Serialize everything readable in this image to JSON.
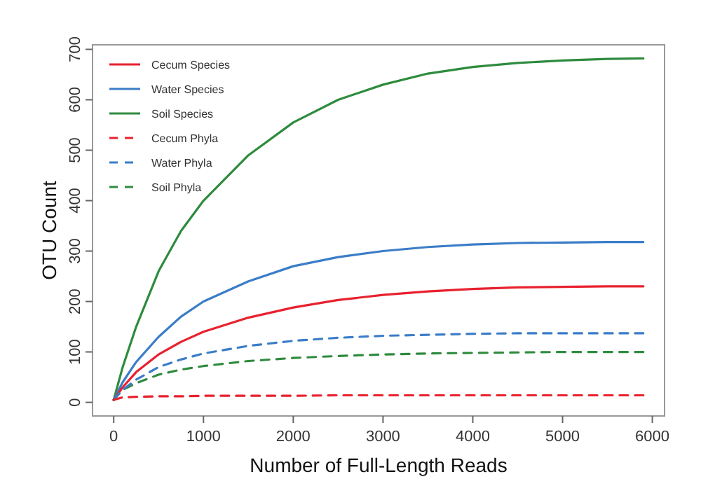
{
  "chart_data": {
    "type": "line",
    "xlabel": "Number of Full-Length Reads",
    "ylabel": "OTU Count",
    "x": [
      0,
      100,
      250,
      500,
      750,
      1000,
      1500,
      2000,
      2500,
      3000,
      3500,
      4000,
      4500,
      5000,
      5500,
      5900
    ],
    "xlim": [
      -236,
      6136
    ],
    "ylim": [
      -27,
      709
    ],
    "xticks": [
      0,
      1000,
      2000,
      3000,
      4000,
      5000,
      6000
    ],
    "yticks": [
      0,
      100,
      200,
      300,
      400,
      500,
      600,
      700
    ],
    "grid": false,
    "legend": "top left",
    "series": [
      {
        "name": "Cecum Species",
        "color": "#e8212e",
        "line_style": "solid",
        "values": [
          5,
          30,
          60,
          95,
          120,
          140,
          168,
          188,
          203,
          213,
          220,
          225,
          228,
          229,
          230,
          230
        ]
      },
      {
        "name": "Water Species",
        "color": "#3b7dc8",
        "line_style": "solid",
        "values": [
          5,
          40,
          80,
          130,
          170,
          200,
          240,
          270,
          288,
          300,
          308,
          313,
          316,
          317,
          318,
          318
        ]
      },
      {
        "name": "Soil Species",
        "color": "#2e8b3e",
        "line_style": "solid",
        "values": [
          5,
          70,
          150,
          260,
          340,
          400,
          490,
          555,
          600,
          630,
          652,
          665,
          673,
          678,
          681,
          682
        ]
      },
      {
        "name": "Cecum Phyla",
        "color": "#e8212e",
        "line_style": "dashed",
        "values": [
          5,
          10,
          11,
          12,
          12,
          13,
          13,
          13,
          14,
          14,
          14,
          14,
          14,
          14,
          14,
          14
        ]
      },
      {
        "name": "Water Phyla",
        "color": "#3b7dc8",
        "line_style": "dashed",
        "values": [
          5,
          25,
          45,
          70,
          85,
          97,
          112,
          122,
          128,
          132,
          134,
          136,
          137,
          137,
          137,
          137
        ]
      },
      {
        "name": "Soil Phyla",
        "color": "#2e8b3e",
        "line_style": "dashed",
        "values": [
          5,
          25,
          38,
          55,
          65,
          72,
          82,
          88,
          92,
          95,
          97,
          98,
          99,
          100,
          100,
          100
        ]
      }
    ]
  }
}
